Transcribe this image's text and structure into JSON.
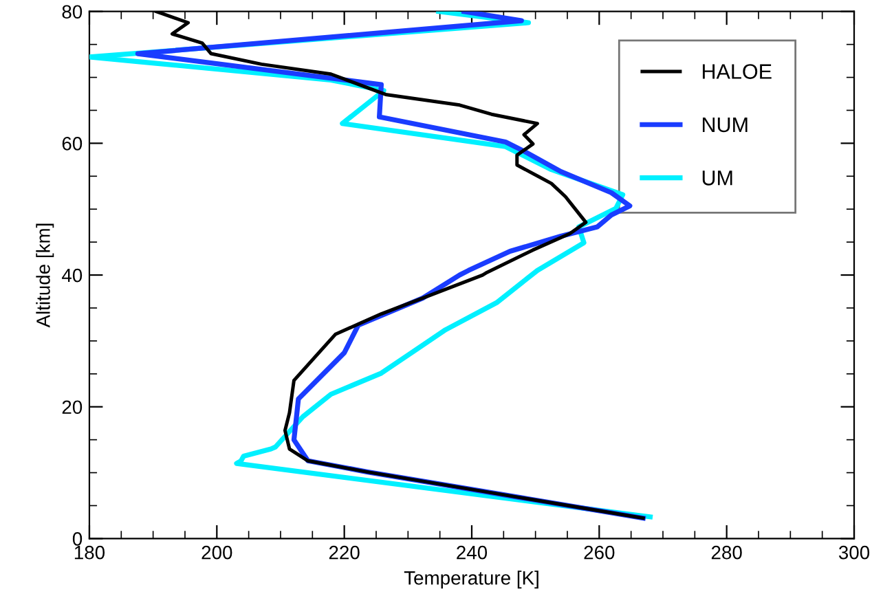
{
  "chart_data": {
    "type": "line",
    "xlabel": "Temperature [K]",
    "ylabel": "Altitude [km]",
    "xlim": [
      180,
      300
    ],
    "xticks": [
      180,
      200,
      220,
      240,
      260,
      280,
      300
    ],
    "ylim": [
      0,
      80
    ],
    "yticks": [
      0,
      20,
      40,
      60,
      80
    ],
    "grid": false,
    "legend": "top right",
    "line_style": "solid",
    "marker": "none",
    "series": [
      {
        "name": "HALOE",
        "color": "#000000",
        "x": [
          190.5,
          195.5,
          193,
          197.7,
          199.1,
          207,
          217.9,
          225.1,
          226.5,
          238.1,
          243.1,
          250.3,
          248.2,
          249.6,
          247.1,
          247.1,
          252.5,
          254.7,
          257.9,
          255.4,
          249.6,
          242.4,
          241.7,
          232.3,
          225.8,
          218.6,
          212.1,
          211.4,
          210.7,
          211.4,
          214.3,
          223.7,
          245.3,
          266.9
        ],
        "values": [
          80,
          78.3,
          76.6,
          75.2,
          73.6,
          72,
          70.5,
          67.9,
          67.4,
          65.8,
          64.4,
          63,
          61.3,
          59.9,
          58.2,
          56.7,
          53.9,
          51.9,
          48,
          46.3,
          43.8,
          40.4,
          40,
          36.5,
          34.1,
          31,
          24,
          19.1,
          16.4,
          13.6,
          11.8,
          10.1,
          6.6,
          3.1
        ]
      },
      {
        "name": "NUM",
        "color": "#1a3cff",
        "x": [
          238.8,
          247.8,
          187.6,
          225.8,
          225.5,
          245.3,
          248.2,
          254,
          261.9,
          264.8,
          261.9,
          259.7,
          254,
          246,
          239.5,
          238.1,
          232.3,
          222.2,
          220,
          212.8,
          212.5,
          212.1,
          214.3,
          223.7,
          245.3,
          266.9
        ],
        "values": [
          80,
          78.6,
          73.6,
          68.9,
          64,
          60.2,
          58.8,
          55.7,
          52.5,
          50.5,
          49.1,
          47.3,
          45.9,
          43.6,
          40.7,
          40,
          36.5,
          32.4,
          28.2,
          21.2,
          18.5,
          15,
          11.8,
          10.1,
          6.6,
          3.1
        ]
      },
      {
        "name": "UM",
        "color": "#00f0ff",
        "x": [
          234.8,
          248.9,
          180,
          187.6,
          217.9,
          226.2,
          219.7,
          245.3,
          252.5,
          263.7,
          262.6,
          256.8,
          257.6,
          250.3,
          243.9,
          235.9,
          225.8,
          217.9,
          213.5,
          209.2,
          208.5,
          204.2,
          203.8,
          203.1,
          268
        ],
        "values": [
          80,
          78.3,
          73.1,
          72.4,
          69.6,
          68,
          63,
          59.5,
          56,
          52.2,
          50.1,
          47.3,
          44.9,
          40.7,
          35.8,
          31.7,
          25.1,
          21.9,
          18.5,
          13.9,
          13.6,
          12.5,
          11.8,
          11.4,
          3.3
        ]
      }
    ]
  }
}
